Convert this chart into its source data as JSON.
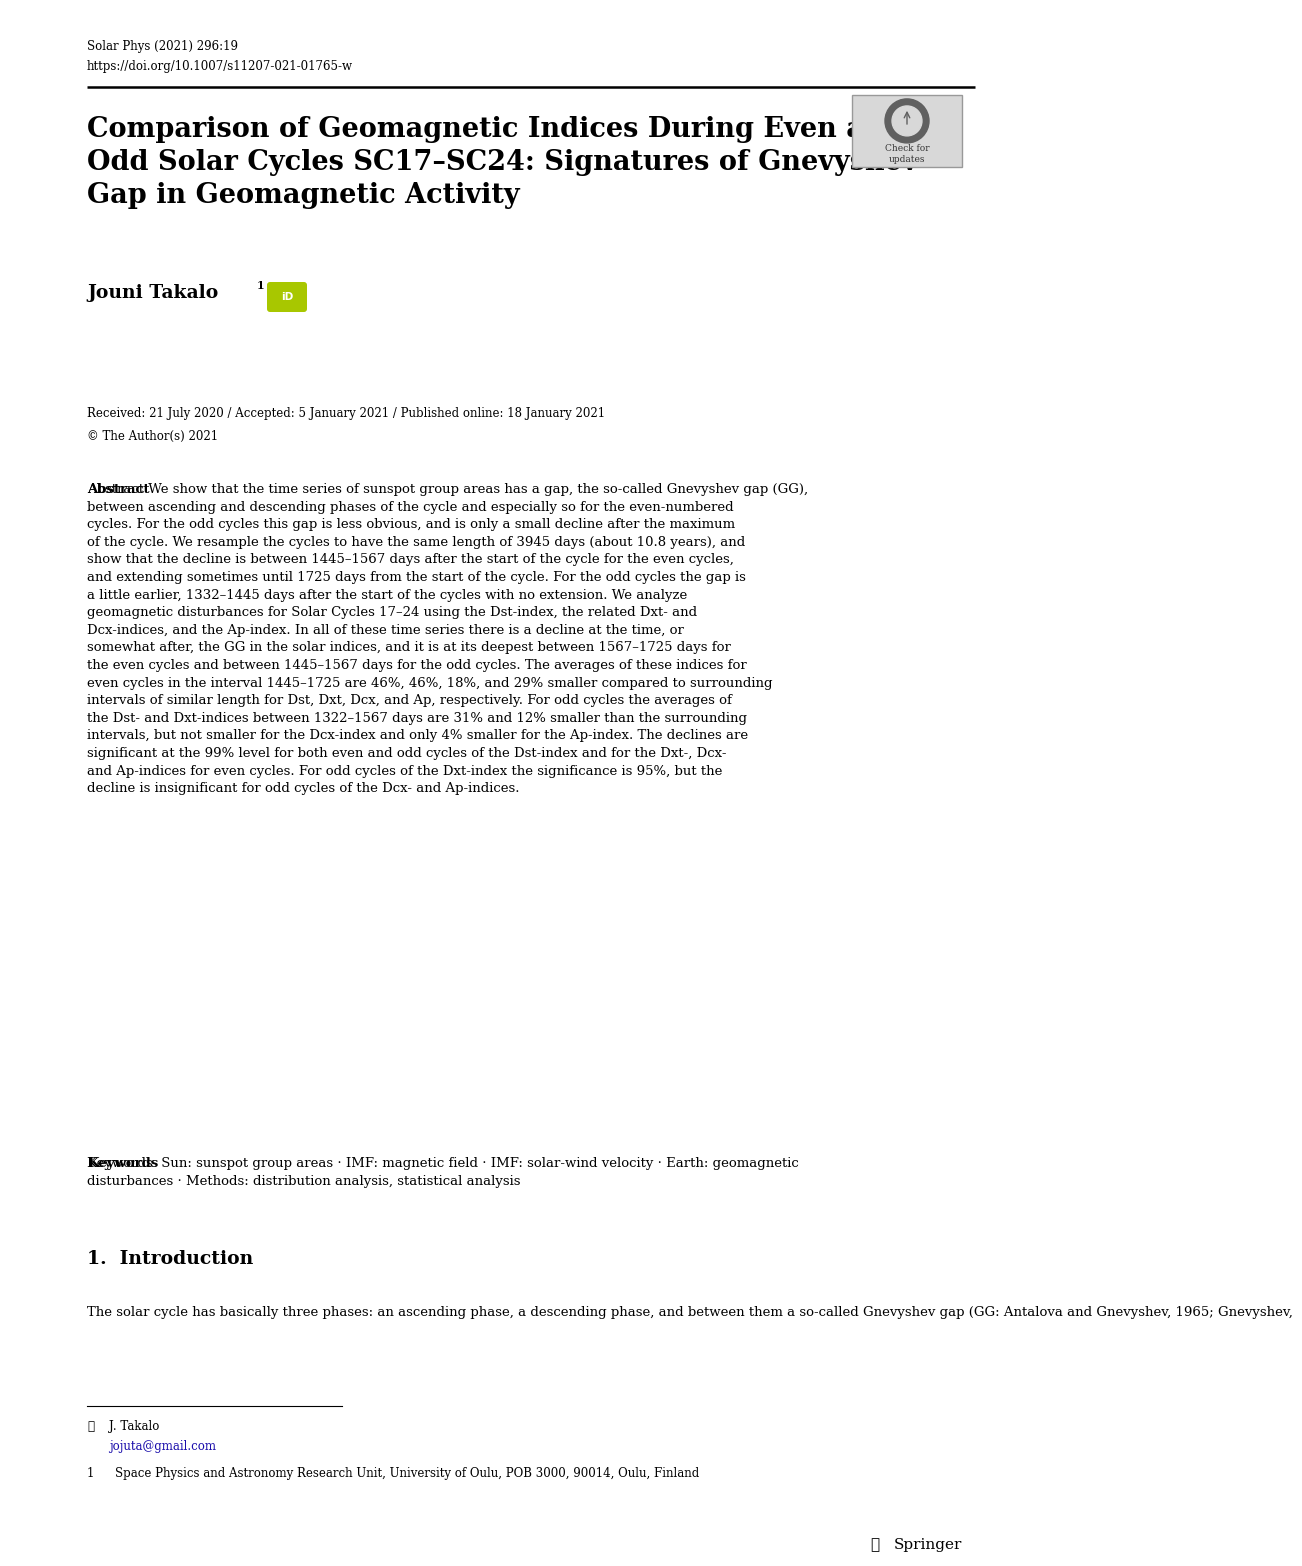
{
  "journal_line1": "Solar Phys (2021) 296:19",
  "journal_line2": "https://doi.org/10.1007/s11207-021-01765-w",
  "title_line1": "Comparison of Geomagnetic Indices During Even and",
  "title_line2": "Odd Solar Cycles SC17–SC24: Signatures of Gnevyshev",
  "title_line3": "Gap in Geomagnetic Activity",
  "author_name": "Jouni Takalo",
  "author_superscript": "1",
  "received_line": "Received: 21 July 2020 / Accepted: 5 January 2021 / Published online: 18 January 2021",
  "copyright_line": "© The Author(s) 2021",
  "abstract_label": "Abstract",
  "abstract_body": "We show that the time series of sunspot group areas has a gap, the so-called Gnevyshev gap (GG), between ascending and descending phases of the cycle and especially so for the even-numbered cycles. For the odd cycles this gap is less obvious, and is only a small decline after the maximum of the cycle. We resample the cycles to have the same length of 3945 days (about 10.8 years), and show that the decline is between 1445–1567 days after the start of the cycle for the even cycles, and extending sometimes until 1725 days from the start of the cycle. For the odd cycles the gap is a little earlier, 1332–1445 days after the start of the cycles with no extension. We analyze geomagnetic disturbances for Solar Cycles 17–24 using the Dst-index, the related Dxt- and Dcx-indices, and the Ap-index. In all of these time series there is a decline at the time, or somewhat after, the GG in the solar indices, and it is at its deepest between 1567–1725 days for the even cycles and between 1445–1567 days for the odd cycles. The averages of these indices for even cycles in the interval 1445–1725 are 46%, 46%, 18%, and 29% smaller compared to surrounding intervals of similar length for Dst, Dxt, Dcx, and Ap, respectively. For odd cycles the averages of the Dst- and Dxt-indices between 1322–1567 days are 31% and 12% smaller than the surrounding intervals, but not smaller for the Dcx-index and only 4% smaller for the Ap-index. The declines are significant at the 99% level for both even and odd cycles of the Dst-index and for the Dxt-, Dcx- and Ap-indices for even cycles. For odd cycles of the Dxt-index the significance is 95%, but the decline is insignificant for odd cycles of the Dcx- and Ap-indices.",
  "keywords_label": "Keywords",
  "keywords_body": "Sun: sunspot group areas · IMF: magnetic field · IMF: solar-wind velocity · Earth: geomagnetic disturbances · Methods: distribution analysis, statistical analysis",
  "section_label": "1.",
  "section_title": "Introduction",
  "intro_body": "The solar cycle has basically three phases: an ascending phase, a descending phase, and between them a so-called Gnevyshev gap (GG: Antalova and Gnevyshev, 1965; Gnevyshev,",
  "footnote_email_name": "J. Takalo",
  "footnote_email_addr": "jojuta@gmail.com",
  "footnote_affil_num": "1",
  "footnote_affil_text": "Space Physics and Astronomy Research Unit, University of Oulu, POB 3000, 90014, Oulu, Finland",
  "springer_label": "Springer",
  "bg_color": "#ffffff",
  "text_color": "#000000",
  "email_color": "#1a0dab",
  "orcid_bg": "#a8c700",
  "check_bg": "#d8d8d8",
  "check_border": "#999999"
}
